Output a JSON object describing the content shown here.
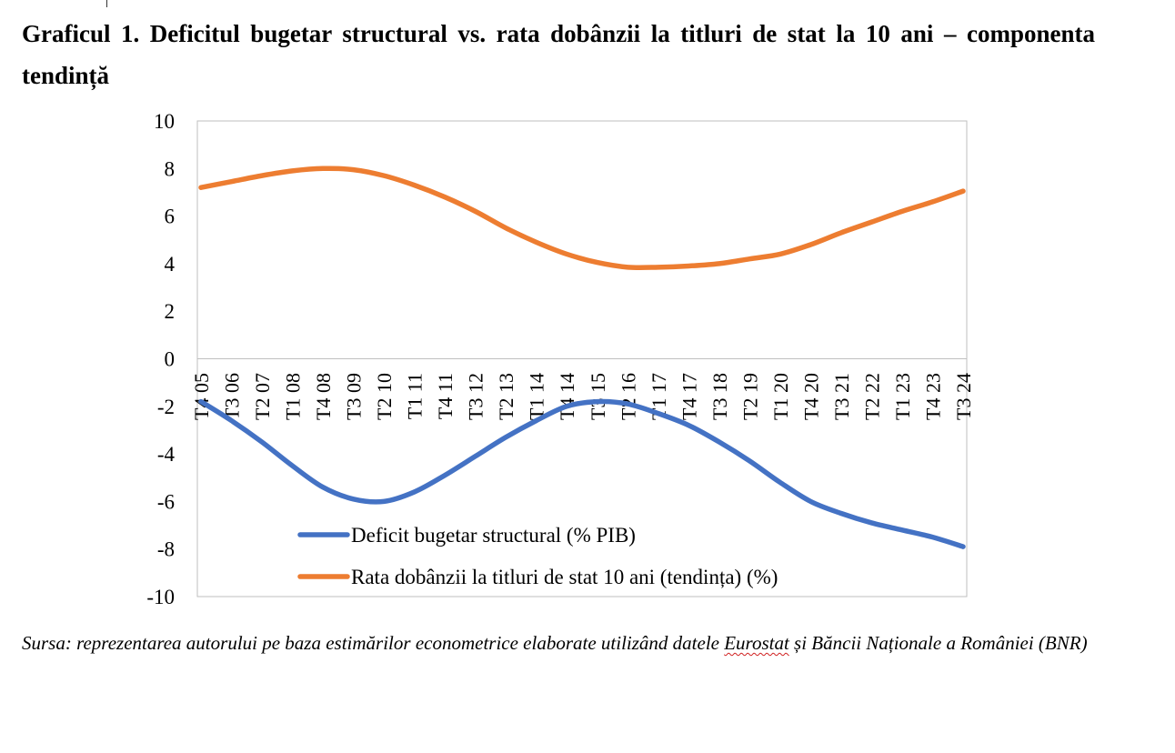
{
  "title": "Graficul 1. Deficitul bugetar structural vs. rata dobânzii la titluri de stat la 10 ani – componenta tendință",
  "source": {
    "before": "Sursa: reprezentarea autorului pe baza estimărilor econometrice elaborate utilizând datele ",
    "highlight": "Eurostat",
    "after": " și Băncii Naționale a României (BNR)"
  },
  "chart_data": {
    "type": "line",
    "title": "",
    "xlabel": "",
    "ylabel": "",
    "ylim": [
      -10,
      10
    ],
    "yticks": [
      10,
      8,
      6,
      4,
      2,
      0,
      -2,
      -4,
      -6,
      -8,
      -10
    ],
    "grid": false,
    "legend_position": "bottom-center (inside plot)",
    "x_tick_labels": [
      "T4 05",
      "T3 06",
      "T2 07",
      "T1 08",
      "T4 08",
      "T3 09",
      "T2 10",
      "T1 11",
      "T4 11",
      "T3 12",
      "T2 13",
      "T1 14",
      "T4 14",
      "T3 15",
      "T2 16",
      "T1 17",
      "T4 17",
      "T3 18",
      "T2 19",
      "T1 20",
      "T4 20",
      "T3 21",
      "T2 22",
      "T1 23",
      "T4 23",
      "T3 24"
    ],
    "series": [
      {
        "name": "Deficit bugetar structural (% PIB)",
        "color": "#4472C4",
        "values": [
          -1.8,
          -2.6,
          -3.5,
          -4.5,
          -5.4,
          -5.9,
          -6.0,
          -5.6,
          -4.9,
          -4.1,
          -3.3,
          -2.6,
          -2.0,
          -1.8,
          -1.9,
          -2.3,
          -2.8,
          -3.5,
          -4.3,
          -5.2,
          -6.0,
          -6.5,
          -6.9,
          -7.2,
          -7.5,
          -7.9
        ]
      },
      {
        "name": "Rata dobânzii la titluri de stat 10 ani (tendința) (%)",
        "color": "#ED7D31",
        "values": [
          7.2,
          7.45,
          7.7,
          7.9,
          8.0,
          7.95,
          7.7,
          7.3,
          6.8,
          6.2,
          5.5,
          4.9,
          4.4,
          4.05,
          3.85,
          3.85,
          3.9,
          4.0,
          4.2,
          4.4,
          4.8,
          5.3,
          5.75,
          6.2,
          6.6,
          7.05
        ]
      }
    ]
  }
}
